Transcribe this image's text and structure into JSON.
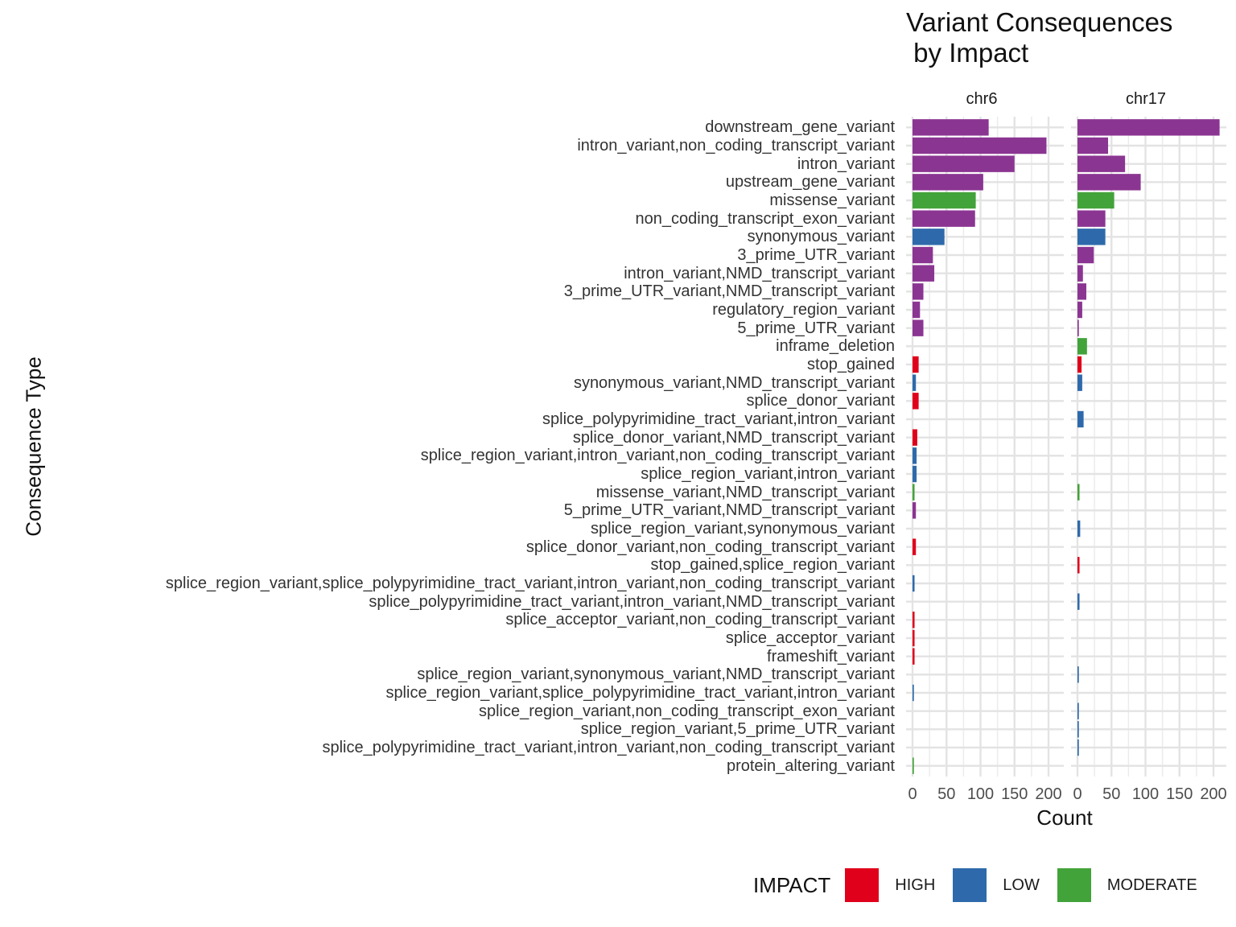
{
  "chart_data": {
    "type": "bar",
    "orientation": "horizontal",
    "title": "Variant Consequences\n by Impact",
    "title_lines": [
      "Variant Consequences",
      " by Impact"
    ],
    "xlabel": "Count",
    "ylabel": "Consequence Type",
    "xlim": [
      0,
      215
    ],
    "xticks": [
      0,
      50,
      100,
      150,
      200
    ],
    "grid": true,
    "legend": {
      "title": "IMPACT",
      "position": "bottom-right",
      "entries": [
        "HIGH",
        "LOW",
        "MODERATE"
      ]
    },
    "colors": {
      "HIGH": "#e0001b",
      "LOW": "#2e6aab",
      "MODERATE": "#42a33a",
      "MODIFIER": "#8b3592"
    },
    "categories": [
      "downstream_gene_variant",
      "intron_variant,non_coding_transcript_variant",
      "intron_variant",
      "upstream_gene_variant",
      "missense_variant",
      "non_coding_transcript_exon_variant",
      "synonymous_variant",
      "3_prime_UTR_variant",
      "intron_variant,NMD_transcript_variant",
      "3_prime_UTR_variant,NMD_transcript_variant",
      "regulatory_region_variant",
      "5_prime_UTR_variant",
      "inframe_deletion",
      "stop_gained",
      "synonymous_variant,NMD_transcript_variant",
      "splice_donor_variant",
      "splice_polypyrimidine_tract_variant,intron_variant",
      "splice_donor_variant,NMD_transcript_variant",
      "splice_region_variant,intron_variant,non_coding_transcript_variant",
      "splice_region_variant,intron_variant",
      "missense_variant,NMD_transcript_variant",
      "5_prime_UTR_variant,NMD_transcript_variant",
      "splice_region_variant,synonymous_variant",
      "splice_donor_variant,non_coding_transcript_variant",
      "stop_gained,splice_region_variant",
      "splice_region_variant,splice_polypyrimidine_tract_variant,intron_variant,non_coding_transcript_variant",
      "splice_polypyrimidine_tract_variant,intron_variant,NMD_transcript_variant",
      "splice_acceptor_variant,non_coding_transcript_variant",
      "splice_acceptor_variant",
      "frameshift_variant",
      "splice_region_variant,synonymous_variant,NMD_transcript_variant",
      "splice_region_variant,splice_polypyrimidine_tract_variant,intron_variant",
      "splice_region_variant,non_coding_transcript_exon_variant",
      "splice_region_variant,5_prime_UTR_variant",
      "splice_polypyrimidine_tract_variant,intron_variant,non_coding_transcript_variant",
      "protein_altering_variant"
    ],
    "impact_per_category": [
      "MODIFIER",
      "MODIFIER",
      "MODIFIER",
      "MODIFIER",
      "MODERATE",
      "MODIFIER",
      "LOW",
      "MODIFIER",
      "MODIFIER",
      "MODIFIER",
      "MODIFIER",
      "MODIFIER",
      "MODERATE",
      "HIGH",
      "LOW",
      "HIGH",
      "LOW",
      "HIGH",
      "LOW",
      "LOW",
      "MODERATE",
      "MODIFIER",
      "LOW",
      "HIGH",
      "HIGH",
      "LOW",
      "LOW",
      "HIGH",
      "HIGH",
      "HIGH",
      "LOW",
      "LOW",
      "LOW",
      "LOW",
      "LOW",
      "MODERATE"
    ],
    "facets": [
      {
        "name": "chr6",
        "values": [
          112,
          197,
          150,
          104,
          93,
          92,
          47,
          30,
          32,
          16,
          11,
          16,
          0,
          9,
          5,
          9,
          0,
          7,
          6,
          6,
          3,
          5,
          0,
          5,
          0,
          3,
          0,
          3,
          3,
          3,
          0,
          2,
          0,
          0,
          0,
          2
        ]
      },
      {
        "name": "chr17",
        "values": [
          209,
          45,
          70,
          93,
          54,
          41,
          41,
          24,
          8,
          13,
          7,
          2,
          14,
          6,
          7,
          0,
          9,
          0,
          0,
          0,
          3,
          0,
          4,
          0,
          3,
          0,
          3,
          0,
          0,
          0,
          2,
          0,
          2,
          2,
          2,
          0
        ]
      }
    ]
  }
}
